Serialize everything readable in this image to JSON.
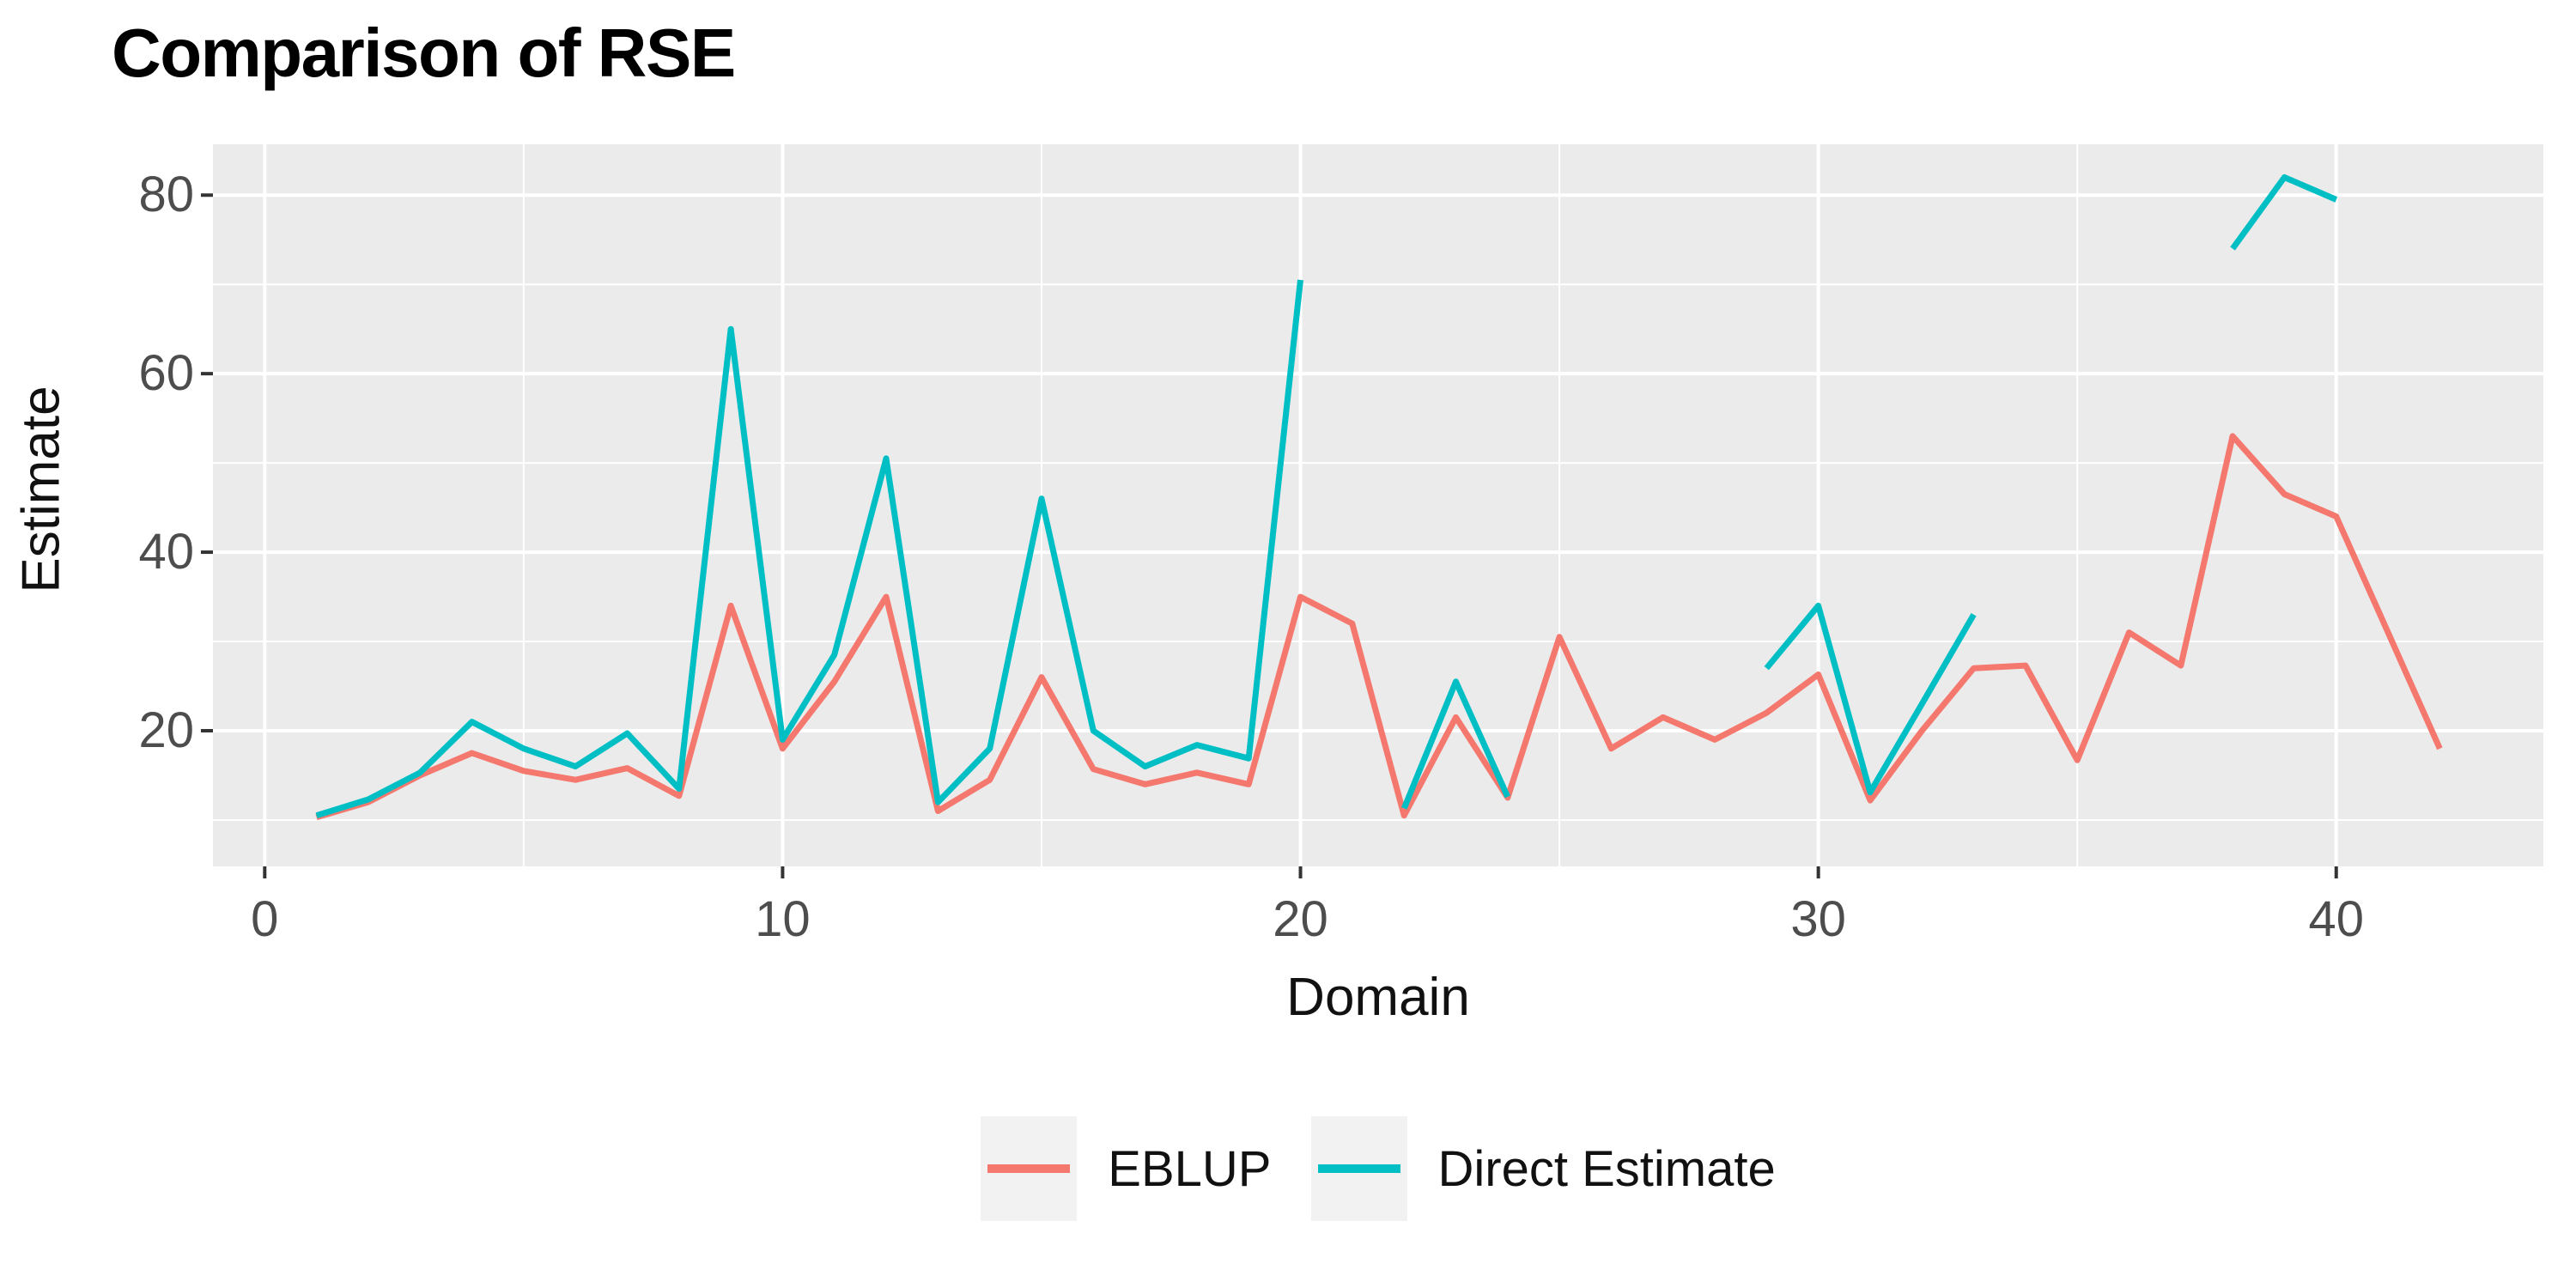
{
  "title": "Comparison of RSE",
  "axes": {
    "x": {
      "title": "Domain",
      "major_ticks": [
        0,
        10,
        20,
        30,
        40
      ],
      "minor_ticks": [
        5,
        15,
        25,
        35
      ]
    },
    "y": {
      "title": "Estimate",
      "major_ticks": [
        20,
        40,
        60,
        80
      ],
      "minor_ticks": [
        10,
        30,
        50,
        70
      ]
    }
  },
  "legend": {
    "items": [
      {
        "label": "EBLUP",
        "color": "#F4786E"
      },
      {
        "label": "Direct Estimate",
        "color": "#00BFC4"
      }
    ]
  },
  "colors": {
    "panel_background": "#EBEBEB",
    "grid": "#FFFFFF",
    "tick_mark": "#333333",
    "tick_text": "#4d4d4d",
    "eblup": "#F4786E",
    "direct": "#00BFC4"
  },
  "chart_data": {
    "type": "line",
    "title": "Comparison of RSE",
    "xlabel": "Domain",
    "ylabel": "Estimate",
    "xlim": [
      -1,
      44
    ],
    "ylim": [
      4.8,
      85.7
    ],
    "grid": "on",
    "legend_position": "bottom",
    "x": [
      1,
      2,
      3,
      4,
      5,
      6,
      7,
      8,
      9,
      10,
      11,
      12,
      13,
      14,
      15,
      16,
      17,
      18,
      19,
      20,
      21,
      22,
      23,
      24,
      25,
      26,
      27,
      28,
      29,
      30,
      31,
      32,
      33,
      34,
      35,
      36,
      37,
      38,
      39,
      40,
      41,
      42
    ],
    "series": [
      {
        "name": "EBLUP",
        "color": "#F4786E",
        "values": [
          10.3,
          12,
          15,
          17.5,
          15.5,
          14.5,
          15.8,
          12.7,
          34,
          18,
          25.5,
          35,
          11,
          14.5,
          26,
          15.7,
          14,
          15.3,
          14,
          35,
          32,
          10.5,
          21.5,
          12.5,
          30.5,
          18,
          21.5,
          19,
          22,
          26.3,
          12.2,
          20,
          27,
          27.3,
          16.7,
          31,
          27.3,
          53,
          46.5,
          44,
          31,
          18
        ]
      },
      {
        "name": "Direct Estimate",
        "color": "#00BFC4",
        "values": [
          10.5,
          12.3,
          15.3,
          21,
          18,
          16,
          19.7,
          13.5,
          65,
          19,
          28.5,
          50.5,
          12,
          18,
          46,
          20,
          16,
          18.4,
          16.9,
          70.5,
          null,
          11.3,
          25.5,
          12.6,
          null,
          null,
          null,
          null,
          27,
          34,
          13.1,
          23,
          33,
          null,
          null,
          null,
          null,
          74,
          82,
          79.5,
          null,
          null
        ]
      }
    ]
  }
}
